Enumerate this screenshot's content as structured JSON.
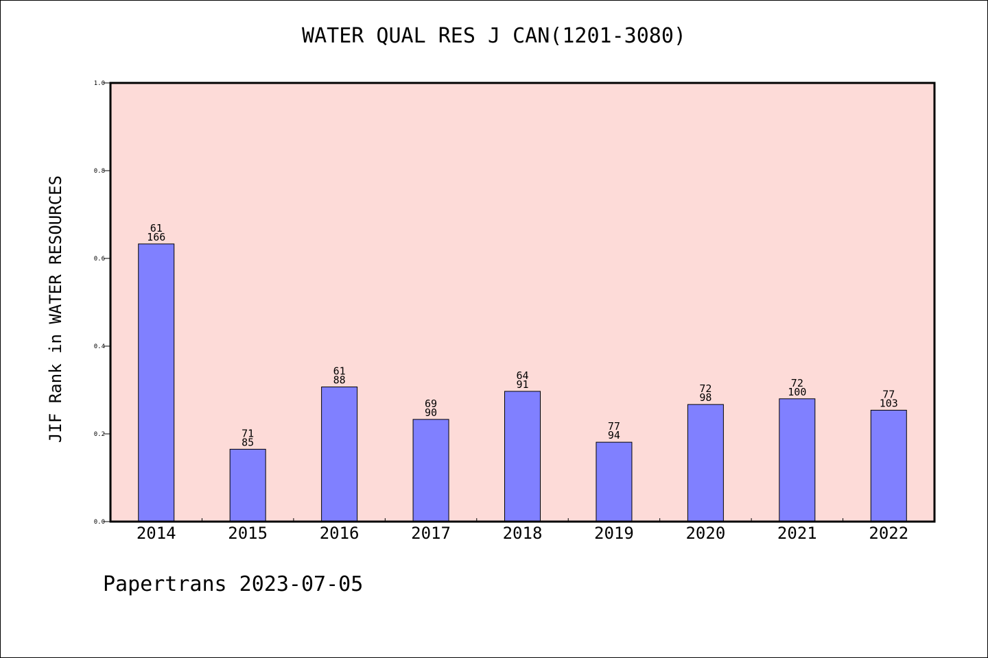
{
  "colors": {
    "plot_background": "#fddbd8",
    "bar_fill": "#8080ff",
    "bar_stroke": "#000000",
    "axis": "#000000"
  },
  "chart_data": {
    "type": "bar",
    "title": "WATER QUAL RES J CAN(1201-3080)",
    "xlabel": "",
    "ylabel": "JIF Rank in WATER RESOURCES",
    "ylim": [
      0,
      1.0
    ],
    "yticks": [
      "0.0",
      "0.2",
      "0.4",
      "0.6",
      "0.8",
      "1.0"
    ],
    "ytick_values": [
      0,
      0.2,
      0.4,
      0.6,
      0.8,
      1.0
    ],
    "grid": false,
    "categories": [
      "2014",
      "2015",
      "2016",
      "2017",
      "2018",
      "2019",
      "2020",
      "2021",
      "2022"
    ],
    "values": [
      0.633,
      0.165,
      0.307,
      0.233,
      0.297,
      0.181,
      0.267,
      0.28,
      0.254
    ],
    "rank_labels": [
      "61",
      "71",
      "61",
      "69",
      "64",
      "77",
      "72",
      "72",
      "77"
    ],
    "total_labels": [
      "166",
      "85",
      "88",
      "90",
      "91",
      "94",
      "98",
      "100",
      "103"
    ]
  },
  "footer": "Papertrans 2023-07-05"
}
